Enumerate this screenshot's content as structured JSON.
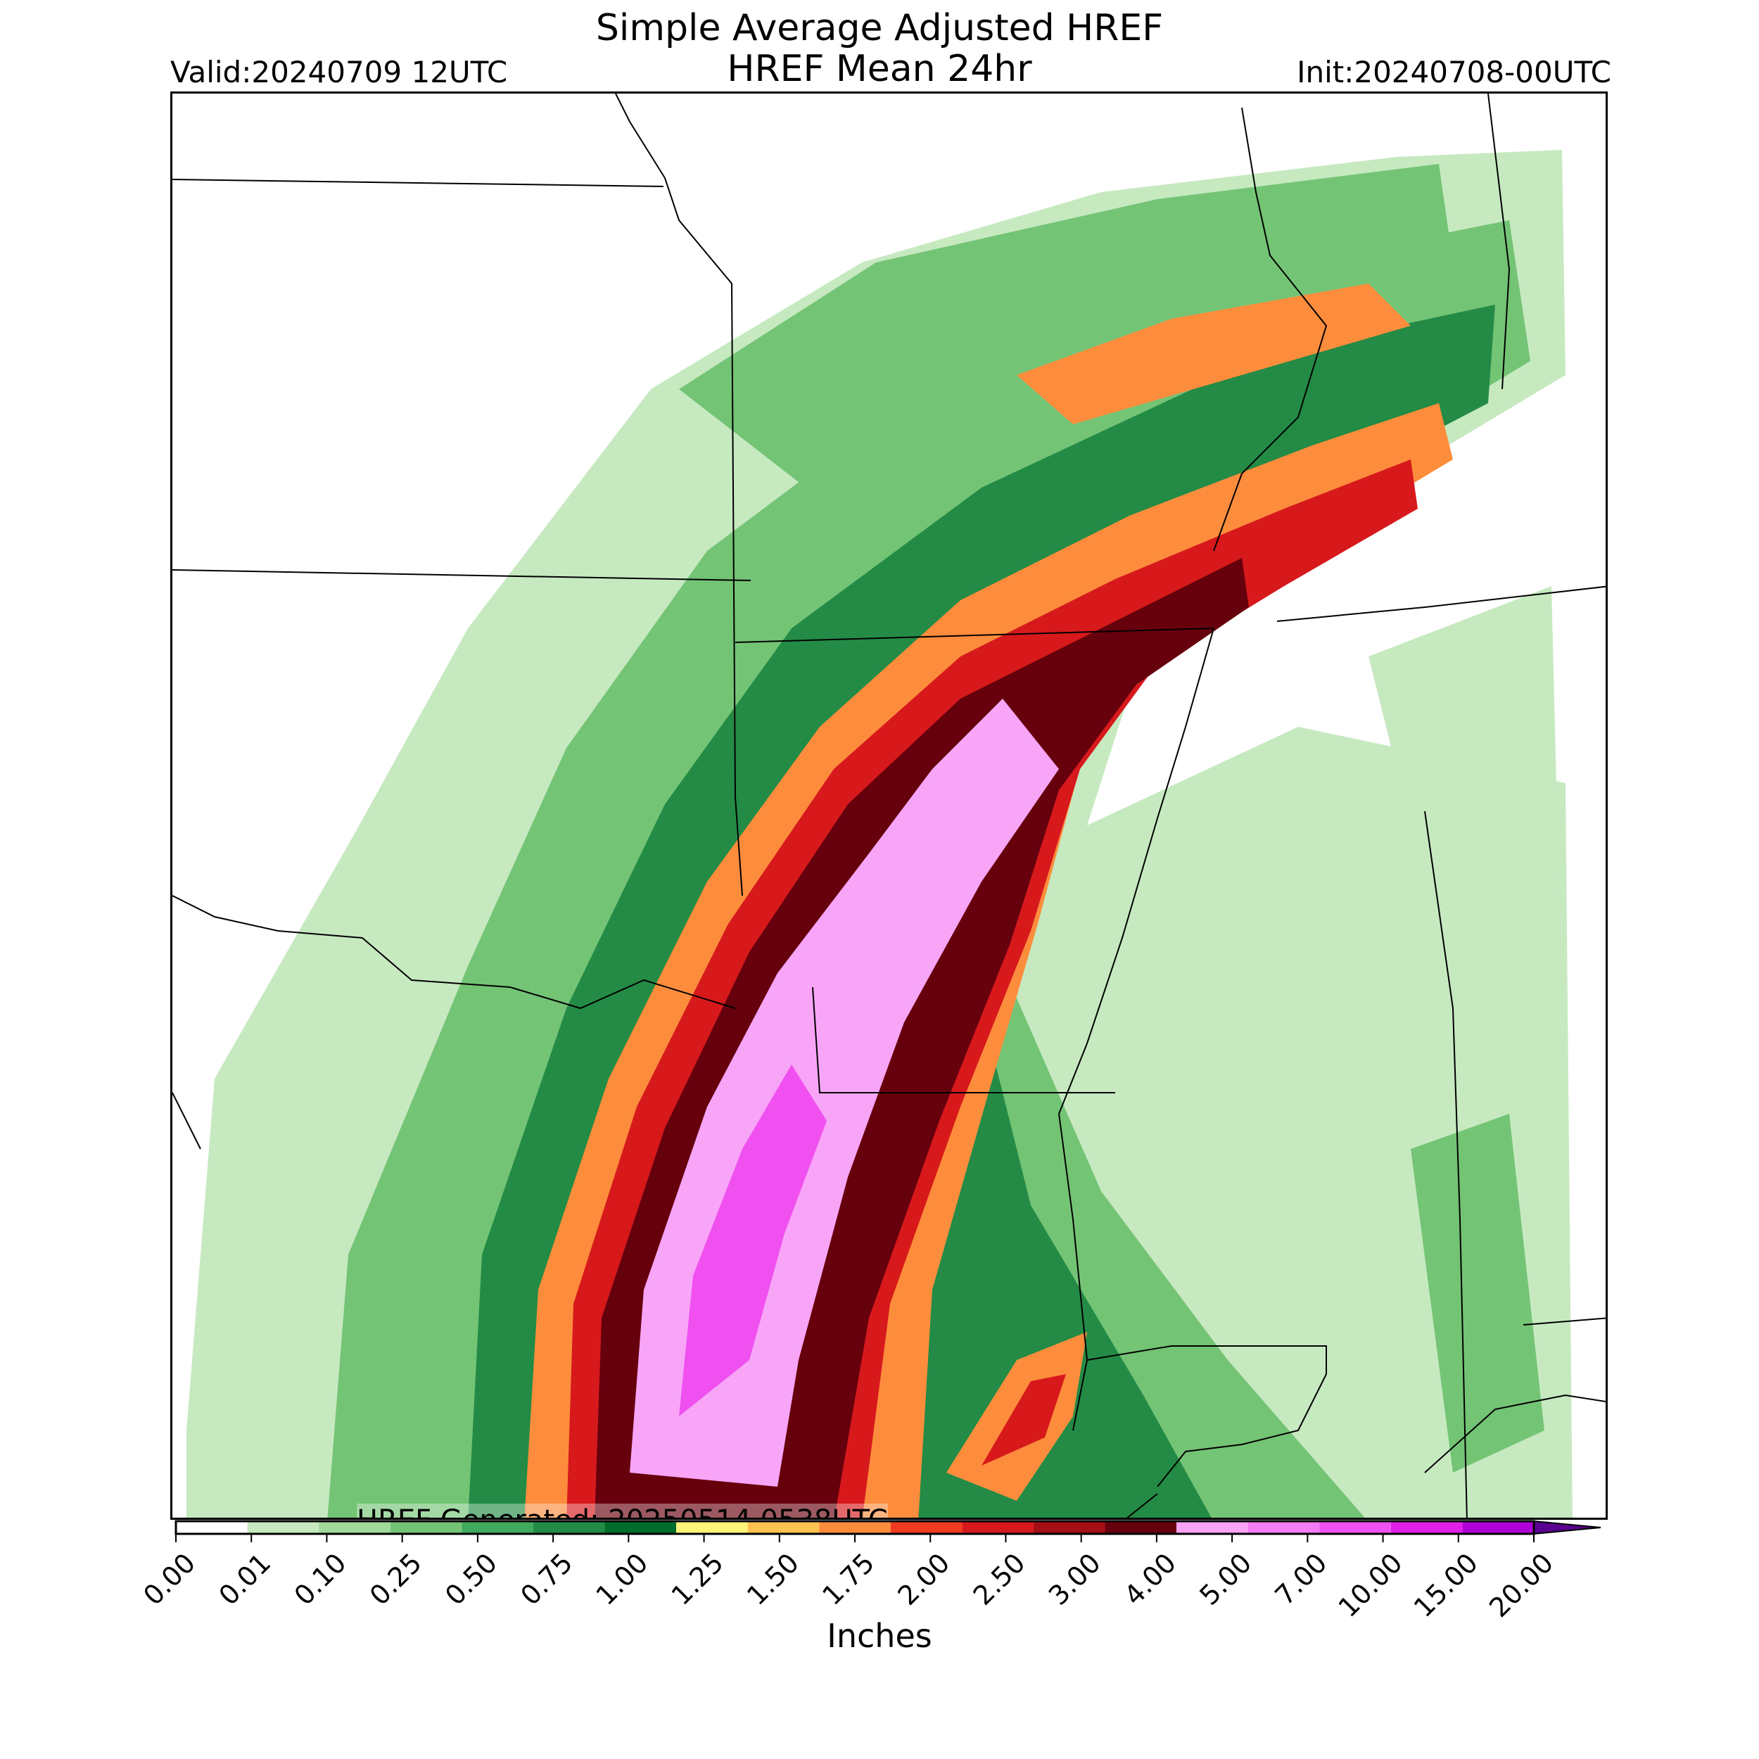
{
  "header": {
    "title_line1": "Simple Average Adjusted HREF",
    "title_line2": "HREF Mean 24hr",
    "valid": "Valid:20240709 12UTC",
    "init": "Init:20240708-00UTC"
  },
  "map": {
    "generated_label": "HREF Generated: 20250514 0538UTC",
    "features": [
      "state-borders",
      "coastline",
      "precipitation-field"
    ]
  },
  "colorbar": {
    "units_label": "Inches",
    "extend": "max",
    "tick_labels": [
      "0.00",
      "0.01",
      "0.10",
      "0.25",
      "0.50",
      "0.75",
      "1.00",
      "1.25",
      "1.50",
      "1.75",
      "2.00",
      "2.50",
      "3.00",
      "4.00",
      "5.00",
      "7.00",
      "10.00",
      "15.00",
      "20.00"
    ],
    "colors": [
      "#ffffff",
      "#c7e9c0",
      "#a1d99b",
      "#74c476",
      "#41ab5d",
      "#238b45",
      "#006d2c",
      "#fff47a",
      "#fec44f",
      "#fd8d3c",
      "#f03b20",
      "#d7191c",
      "#a50f15",
      "#67000d",
      "#f8a5f8",
      "#f57cf5",
      "#f050f0",
      "#e020e8",
      "#b000d8",
      "#8a00c8"
    ],
    "extend_color": "#5a0090"
  },
  "precip_levels": {
    "light": "#c7e9c0",
    "moderate": "#74c476",
    "heavy": "#238b45",
    "orange": "#fd8d3c",
    "red": "#d7191c",
    "maroon": "#67000d",
    "pink": "#f8a5f8",
    "magenta": "#f050f0"
  }
}
